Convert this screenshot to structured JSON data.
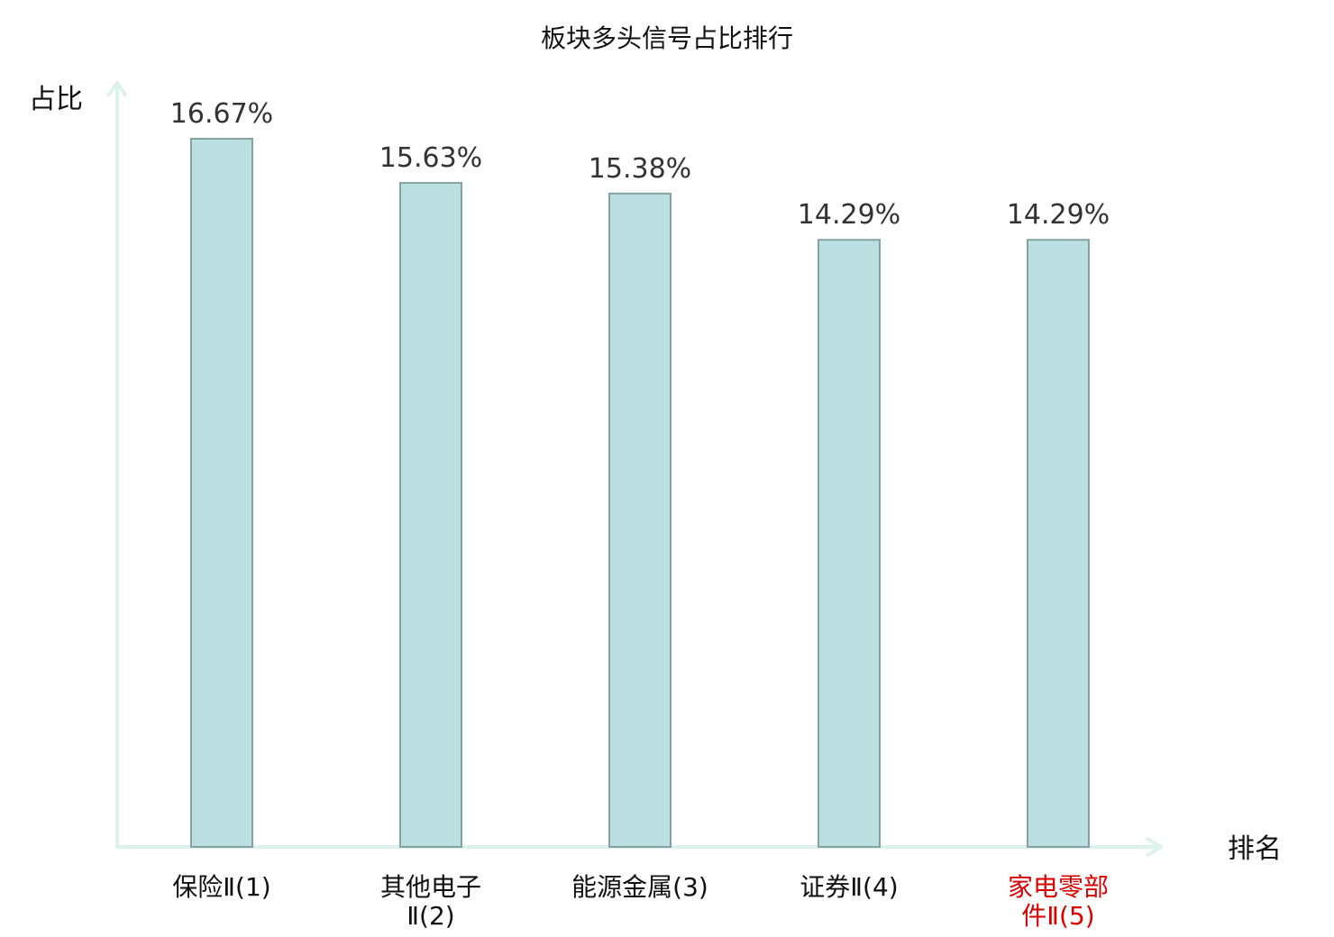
{
  "chart_data": {
    "type": "bar",
    "title": "板块多头信号占比排行",
    "xlabel": "排名",
    "ylabel": "占比",
    "ylim": [
      0,
      16.67
    ],
    "grid": false,
    "legend": "none",
    "categories": [
      {
        "lines": [
          "保险Ⅱ(1)"
        ],
        "highlight": false
      },
      {
        "lines": [
          "其他电子",
          "Ⅱ(2)"
        ],
        "highlight": false
      },
      {
        "lines": [
          "能源金属(3)"
        ],
        "highlight": false
      },
      {
        "lines": [
          "证券Ⅱ(4)"
        ],
        "highlight": false
      },
      {
        "lines": [
          "家电零部",
          "件Ⅱ(5)"
        ],
        "highlight": true
      }
    ],
    "values": [
      16.67,
      15.63,
      15.38,
      14.29,
      14.29
    ],
    "value_labels": [
      "16.67%",
      "15.63%",
      "15.38%",
      "14.29%",
      "14.29%"
    ]
  },
  "colors": {
    "bar_fill": "#bce0e1",
    "bar_stroke": "#83a2a2",
    "axis": "#ddf2ef",
    "label": "#111111",
    "value_label": "#333333",
    "highlight": "#d90000"
  }
}
